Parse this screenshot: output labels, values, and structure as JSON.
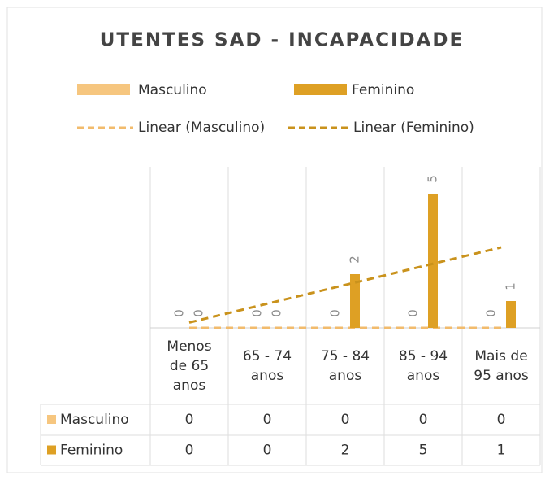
{
  "chart_data": {
    "type": "bar",
    "title": "UTENTES SAD - INCAPACIDADE",
    "categories": [
      "Menos de 65 anos",
      "65 - 74 anos",
      "75 - 84 anos",
      "85 - 94 anos",
      "Mais de 95 anos"
    ],
    "series": [
      {
        "name": "Masculino",
        "color": "#f6c67f",
        "values": [
          0,
          0,
          0,
          0,
          0
        ],
        "trendline": {
          "name": "Linear (Masculino)",
          "color": "#f2bb6c"
        }
      },
      {
        "name": "Feminino",
        "color": "#dea024",
        "values": [
          0,
          0,
          2,
          5,
          1
        ],
        "trendline": {
          "name": "Linear (Feminino)",
          "color": "#c9921c"
        }
      }
    ],
    "data_labels": true,
    "data_table": true
  }
}
